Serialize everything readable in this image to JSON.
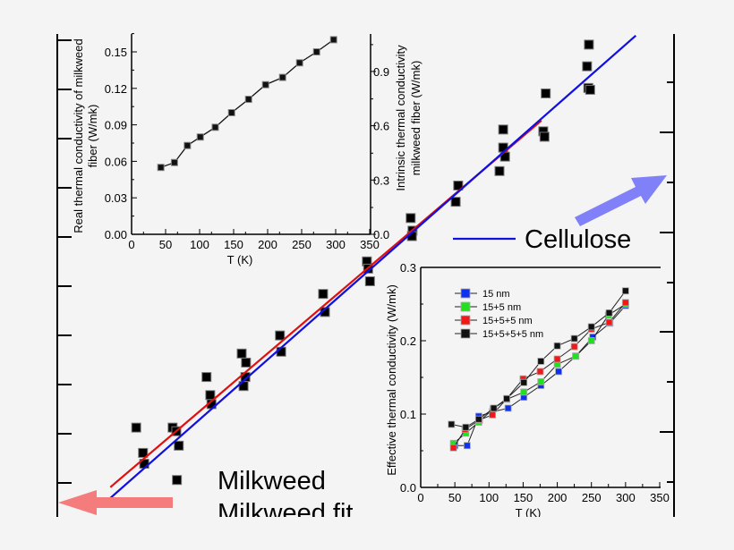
{
  "colors": {
    "background": "#f4f4f4",
    "cellulose": "#1010e0",
    "milkweed_fit": "#e01010",
    "blue_arrow": "#8080f8",
    "red_arrow": "#f47c7c"
  },
  "chart_data": [
    {
      "id": "main",
      "type": "scatter",
      "title": "",
      "note": "main plot has no tick labels; x in arbitrary units 0-100, y in intrinsic conductivity units (W/mk)",
      "xlim": [
        0,
        100
      ],
      "ylim": [
        -1.55,
        1.1
      ],
      "legend": [
        {
          "label": "Milkweed",
          "marker": "square"
        },
        {
          "label": "Milkweed fit",
          "marker": "line",
          "color": "#e01010"
        },
        {
          "label": "Cellulose",
          "marker": "line",
          "color": "#1010e0"
        }
      ],
      "points": [
        [
          12.8,
          -1.07
        ],
        [
          13.9,
          -1.21
        ],
        [
          14.1,
          -1.27
        ],
        [
          18.7,
          -1.07
        ],
        [
          19.3,
          -1.09
        ],
        [
          19.7,
          -1.17
        ],
        [
          19.4,
          -1.36
        ],
        [
          24.2,
          -0.79
        ],
        [
          24.8,
          -0.89
        ],
        [
          25.0,
          -0.94
        ],
        [
          29.9,
          -0.66
        ],
        [
          30.6,
          -0.71
        ],
        [
          30.5,
          -0.79
        ],
        [
          30.2,
          -0.84
        ],
        [
          36.1,
          -0.56
        ],
        [
          36.3,
          -0.65
        ],
        [
          43.1,
          -0.33
        ],
        [
          43.4,
          -0.43
        ],
        [
          50.2,
          -0.15
        ],
        [
          50.4,
          -0.19
        ],
        [
          50.7,
          -0.26
        ],
        [
          57.3,
          0.09
        ],
        [
          57.6,
          0.02
        ],
        [
          57.5,
          -0.01
        ],
        [
          64.6,
          0.18
        ],
        [
          65.0,
          0.27
        ],
        [
          72.3,
          0.58
        ],
        [
          72.3,
          0.48
        ],
        [
          72.6,
          0.43
        ],
        [
          71.7,
          0.35
        ],
        [
          78.8,
          0.57
        ],
        [
          79.0,
          0.54
        ],
        [
          79.2,
          0.78
        ],
        [
          86.1,
          0.81
        ],
        [
          86.4,
          0.8
        ],
        [
          85.9,
          0.93
        ],
        [
          86.2,
          1.05
        ]
      ],
      "fits": [
        {
          "name": "Milkweed fit",
          "x": [
            8.6,
            78.5
          ],
          "y": [
            -1.4,
            0.63
          ]
        },
        {
          "name": "Cellulose",
          "x": [
            8.6,
            93.8
          ],
          "y": [
            -1.46,
            1.1
          ]
        }
      ],
      "labels": {
        "cellulose": "Cellulose",
        "milkweed": "Milkweed",
        "milkweed_fit": "Milkweed fit"
      }
    },
    {
      "id": "inset_real",
      "type": "line",
      "xlabel": "T (K)",
      "ylabel_line1": "Real thermal conductivity of milkweed",
      "ylabel_line2": "fiber (W/mk)",
      "xlim": [
        0,
        350
      ],
      "ylim": [
        0,
        0.16
      ],
      "xticks": [
        "0",
        "50",
        "100",
        "150",
        "200",
        "250",
        "300",
        "350"
      ],
      "yticks": [
        "0.00",
        "0.03",
        "0.06",
        "0.09",
        "0.12",
        "0.15"
      ],
      "x": [
        43,
        63,
        82,
        101,
        123,
        147,
        172,
        197,
        222,
        247,
        272,
        297
      ],
      "y": [
        0.055,
        0.059,
        0.073,
        0.08,
        0.088,
        0.1,
        0.111,
        0.123,
        0.129,
        0.141,
        0.15,
        0.16
      ]
    },
    {
      "id": "intrinsic_axis",
      "type": "axis",
      "ylabel_line1": "Intrinsic thermal conductivity",
      "ylabel_line2": "milkweed fiber (W/mk)",
      "yticks": [
        "0.0",
        "0.3",
        "0.6",
        "0.9"
      ]
    },
    {
      "id": "inset_effective",
      "type": "line",
      "xlabel": "T (K)",
      "ylabel": "Effective thermal conductivity (W/mk)",
      "xlim": [
        0,
        350
      ],
      "ylim": [
        0,
        0.3
      ],
      "xticks": [
        "0",
        "50",
        "100",
        "150",
        "200",
        "250",
        "300",
        "350"
      ],
      "yticks": [
        "0.0",
        "0.1",
        "0.2",
        "0.3"
      ],
      "legend_position": "top-left",
      "series": [
        {
          "name": "15 nm",
          "color": "#1030f0",
          "x": [
            50,
            68,
            85,
            105,
            128,
            151,
            176,
            202,
            227,
            252,
            277,
            300
          ],
          "y": [
            0.057,
            0.057,
            0.097,
            0.103,
            0.108,
            0.123,
            0.139,
            0.158,
            0.179,
            0.205,
            0.224,
            0.248
          ]
        },
        {
          "name": "15+5 nm",
          "color": "#20e020",
          "x": [
            48,
            66,
            85,
            106,
            126,
            151,
            176,
            200,
            227,
            250,
            275,
            300
          ],
          "y": [
            0.06,
            0.074,
            0.089,
            0.107,
            0.12,
            0.13,
            0.144,
            0.168,
            0.179,
            0.2,
            0.235,
            0.25
          ]
        },
        {
          "name": "15+5+5 nm",
          "color": "#f01818",
          "x": [
            48,
            65,
            86,
            105,
            126,
            150,
            175,
            200,
            225,
            250,
            276,
            300
          ],
          "y": [
            0.054,
            0.079,
            0.092,
            0.099,
            0.121,
            0.148,
            0.158,
            0.175,
            0.192,
            0.216,
            0.225,
            0.252
          ]
        },
        {
          "name": "15+5+5+5 nm",
          "color": "#101010",
          "x": [
            45,
            66,
            85,
            107,
            126,
            151,
            176,
            200,
            225,
            250,
            276,
            300
          ],
          "y": [
            0.086,
            0.082,
            0.093,
            0.108,
            0.121,
            0.143,
            0.172,
            0.193,
            0.203,
            0.219,
            0.238,
            0.268
          ]
        }
      ]
    }
  ]
}
